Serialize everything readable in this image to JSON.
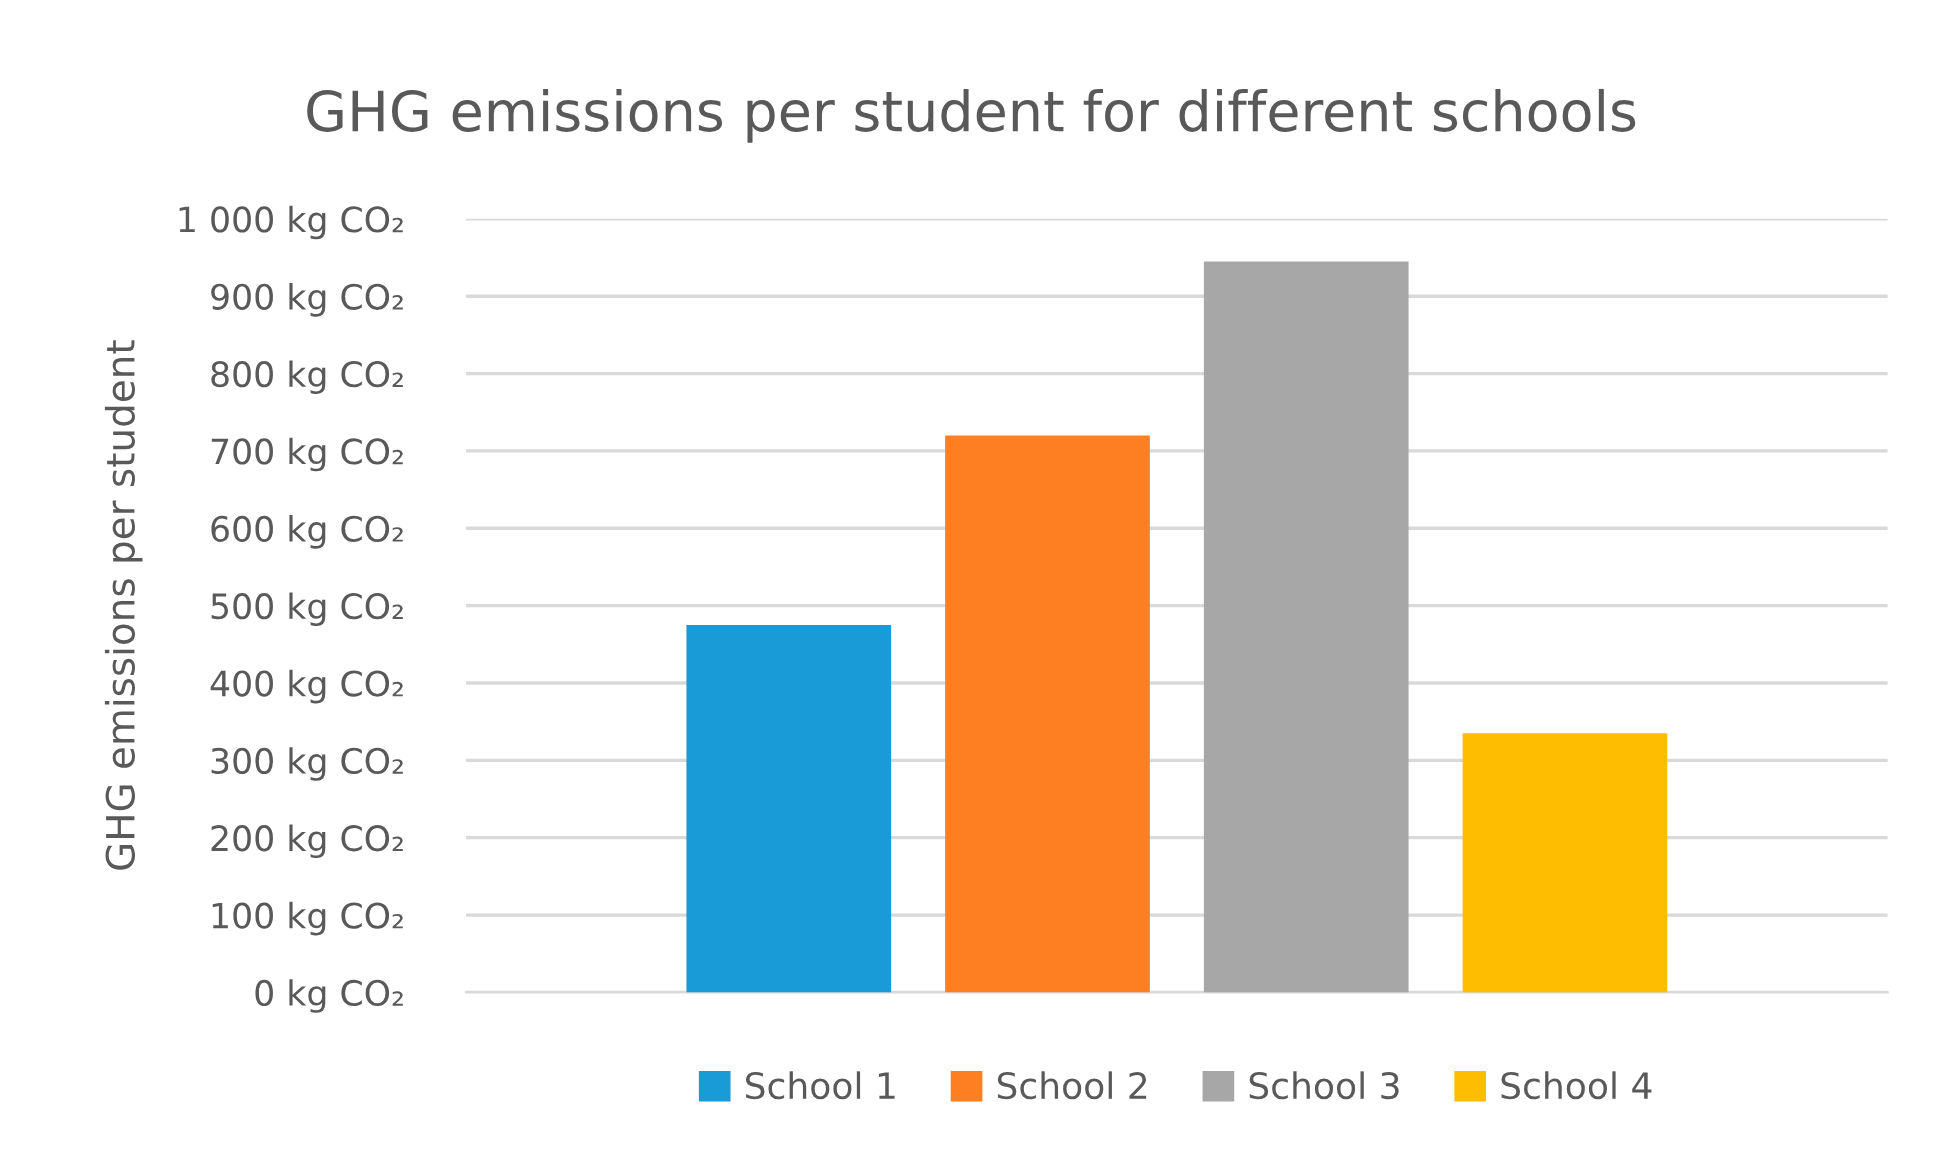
{
  "chart_data": {
    "type": "bar",
    "title": "GHG emissions per student for different schools",
    "ylabel": "GHG emissions per student",
    "categories": [
      null
    ],
    "series": [
      {
        "name": "School 1",
        "color": "#189bd6",
        "values": [
          475
        ]
      },
      {
        "name": "School 2",
        "color": "#fe7f21",
        "values": [
          720
        ]
      },
      {
        "name": "School 3",
        "color": "#a7a7a7",
        "values": [
          945
        ]
      },
      {
        "name": "School 4",
        "color": "#febd00",
        "values": [
          335
        ]
      }
    ],
    "ylim": [
      0,
      1000
    ],
    "yticks": [
      {
        "value": 0,
        "label": "0 kg CO₂"
      },
      {
        "value": 100,
        "label": "100 kg CO₂"
      },
      {
        "value": 200,
        "label": "200 kg CO₂"
      },
      {
        "value": 300,
        "label": "300 kg CO₂"
      },
      {
        "value": 400,
        "label": "400 kg CO₂"
      },
      {
        "value": 500,
        "label": "500 kg CO₂"
      },
      {
        "value": 600,
        "label": "600 kg CO₂"
      },
      {
        "value": 700,
        "label": "700 kg CO₂"
      },
      {
        "value": 800,
        "label": "800 kg CO₂"
      },
      {
        "value": 900,
        "label": "900 kg CO₂"
      },
      {
        "value": 1000,
        "label": "1 000 kg CO₂"
      }
    ],
    "grid": "y",
    "legend": "bottom"
  }
}
